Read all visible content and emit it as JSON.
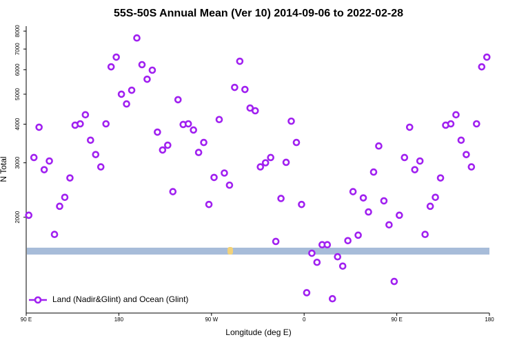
{
  "chart_data": {
    "type": "scatter",
    "title": "55S-50S Annual Mean (Ver 10)   2014-09-06 to 2022-02-28",
    "x_label": "Longitude (deg E)",
    "y_label": "N Total",
    "xlim": [
      90,
      540
    ],
    "xticks": [
      {
        "value": 90,
        "label": "90 E"
      },
      {
        "value": 180,
        "label": "180"
      },
      {
        "value": 270,
        "label": "90 W"
      },
      {
        "value": 360,
        "label": "0"
      },
      {
        "value": 450,
        "label": "90 E"
      },
      {
        "value": 540,
        "label": "180"
      }
    ],
    "ylim": [
      980,
      8300
    ],
    "yticks": [
      2000,
      3000,
      4000,
      5000,
      6000,
      7000,
      8000
    ],
    "ylog": true,
    "grid": false,
    "legend": "bottom-left",
    "x": [
      92.5,
      97.5,
      102.5,
      107.5,
      112.5,
      117.5,
      122.5,
      127.5,
      132.5,
      137.5,
      142.5,
      147.5,
      152.5,
      157.5,
      162.5,
      167.5,
      172.5,
      177.5,
      182.5,
      187.5,
      192.5,
      197.5,
      202.5,
      207.5,
      212.5,
      217.5,
      222.5,
      227.5,
      232.5,
      237.5,
      242.5,
      247.5,
      252.5,
      257.5,
      262.5,
      267.5,
      272.5,
      277.5,
      282.5,
      287.5,
      292.5,
      297.5,
      302.5,
      307.5,
      312.5,
      317.5,
      322.5,
      327.5,
      332.5,
      337.5,
      342.5,
      347.5,
      352.5,
      357.5,
      362.5,
      367.5,
      372.5,
      377.5,
      382.5,
      387.5,
      392.5,
      397.5,
      402.5,
      407.5,
      412.5,
      417.5,
      422.5,
      427.5,
      432.5,
      437.5,
      442.5,
      447.5,
      452.5,
      457.5,
      462.5,
      467.5,
      472.5,
      477.5,
      482.5,
      487.5,
      492.5,
      497.5,
      502.5,
      507.5,
      512.5,
      517.5,
      522.5,
      527.5,
      532.5,
      537.5
    ],
    "series": [
      {
        "name": "Land (Nadir&Glint) and Ocean (Glint)",
        "color": "#a020f0",
        "values": [
          2030,
          3120,
          3910,
          2850,
          3040,
          1760,
          2170,
          2320,
          2680,
          3970,
          4010,
          4290,
          3550,
          3190,
          2910,
          4010,
          6130,
          6590,
          5000,
          4650,
          5150,
          7600,
          6230,
          5590,
          5980,
          3770,
          3300,
          3420,
          2420,
          4800,
          3990,
          4010,
          3830,
          3240,
          3490,
          2200,
          2690,
          4140,
          2780,
          2540,
          5260,
          6390,
          5180,
          4510,
          4420,
          2910,
          3000,
          3120,
          1670,
          2300,
          3010,
          4090,
          3490,
          2200,
          1140,
          1530,
          1430,
          1630,
          1630,
          1090,
          1490,
          1390,
          1680,
          2420,
          1750,
          2310,
          2080,
          2800,
          3400,
          2260,
          1890,
          1240,
          2030,
          3120,
          3910,
          2850,
          3040,
          1760,
          2170,
          2320,
          2680,
          3970,
          4010,
          4290,
          3550,
          3190,
          2910,
          4010,
          6130,
          6590
        ]
      }
    ]
  }
}
